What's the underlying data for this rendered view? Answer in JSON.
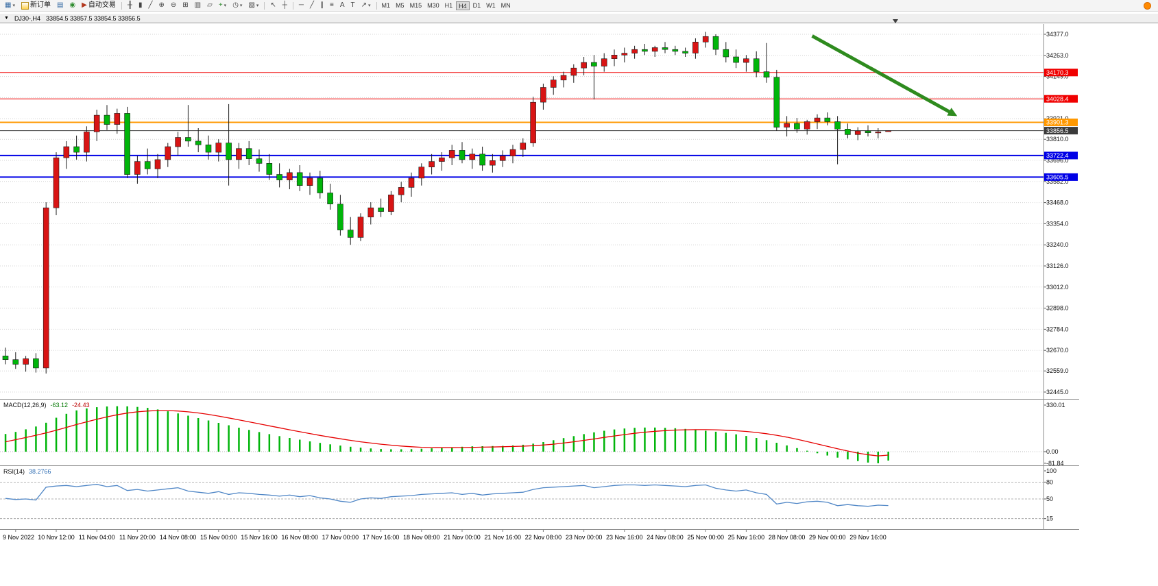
{
  "toolbar": {
    "new_order_label": "新订单",
    "autotrading_label": "自动交易",
    "timeframes": [
      "M1",
      "M5",
      "M15",
      "M30",
      "H1",
      "H4",
      "D1",
      "W1",
      "MN"
    ],
    "active_timeframe": "H4",
    "glyphs": {
      "dropdown": "▾",
      "charts": "▦",
      "market_watch": "▤",
      "navigator": "◉",
      "autotrading_play": "▶",
      "bar_chart": "╫",
      "candle_chart": "▮",
      "line_chart": "╱",
      "zoom_in": "⊕",
      "zoom_out": "⊖",
      "tile_windows": "⊞",
      "cascade": "▱",
      "arrange": "▥",
      "indicators": "+",
      "periods": "◷",
      "templates": "▧",
      "cursor": "↖",
      "crosshair": "┼",
      "horizontal_line": "─",
      "trendline": "╱",
      "channel": "∥",
      "fibonacci": "≡",
      "text": "A",
      "text_label": "T",
      "arrows": "↗"
    }
  },
  "chart_header": {
    "menu_glyph": "▼",
    "symbol_period": "DJ30-,H4",
    "ohlc": "33854.5 33857.5 33854.5 33856.5"
  },
  "chart_data": {
    "type": "candlestick",
    "symbol": "DJ30-",
    "timeframe": "H4",
    "candlestick": {
      "up_color": "#d81414",
      "down_color": "#00b50a",
      "y_axis_ticks": [
        "34377.0",
        "34263.0",
        "34149.0",
        "34035.0",
        "33921.0",
        "33810.0",
        "33696.0",
        "33582.0",
        "33468.0",
        "33354.0",
        "33240.0",
        "33126.0",
        "33012.0",
        "32898.0",
        "32784.0",
        "32670.0",
        "32559.0",
        "32445.0"
      ],
      "levels": [
        {
          "label": "34170.3",
          "price": 34170.3,
          "color": "#f00000",
          "width": 1
        },
        {
          "label": "34028.4",
          "price": 34028.4,
          "color": "#f00000",
          "width": 1
        },
        {
          "label": "33901.3",
          "price": 33901.3,
          "color": "#ff9800",
          "width": 2
        },
        {
          "label": "33856.5",
          "price": 33856.5,
          "color": "#3a3a3a",
          "width": 1
        },
        {
          "label": "33722.4",
          "price": 33722.4,
          "color": "#0000e6",
          "width": 2
        },
        {
          "label": "33605.5",
          "price": 33605.5,
          "color": "#0000e6",
          "width": 2
        }
      ],
      "candles": [
        [
          32640,
          32685,
          32595,
          32620
        ],
        [
          32620,
          32660,
          32570,
          32595
        ],
        [
          32595,
          32640,
          32555,
          32625
        ],
        [
          32625,
          32655,
          32550,
          32575
        ],
        [
          32575,
          33470,
          32545,
          33440
        ],
        [
          33440,
          33740,
          33400,
          33710
        ],
        [
          33710,
          33800,
          33650,
          33770
        ],
        [
          33770,
          33830,
          33700,
          33740
        ],
        [
          33740,
          33880,
          33690,
          33850
        ],
        [
          33850,
          33970,
          33800,
          33940
        ],
        [
          33940,
          33995,
          33860,
          33890
        ],
        [
          33890,
          33975,
          33840,
          33950
        ],
        [
          33950,
          33985,
          33600,
          33620
        ],
        [
          33620,
          33720,
          33570,
          33690
        ],
        [
          33690,
          33760,
          33620,
          33650
        ],
        [
          33650,
          33730,
          33600,
          33700
        ],
        [
          33700,
          33790,
          33660,
          33770
        ],
        [
          33770,
          33850,
          33720,
          33820
        ],
        [
          33820,
          33995,
          33770,
          33800
        ],
        [
          33800,
          33870,
          33740,
          33780
        ],
        [
          33780,
          33830,
          33700,
          33740
        ],
        [
          33740,
          33810,
          33690,
          33790
        ],
        [
          33790,
          34000,
          33560,
          33700
        ],
        [
          33700,
          33790,
          33650,
          33760
        ],
        [
          33760,
          33800,
          33670,
          33705
        ],
        [
          33705,
          33755,
          33635,
          33680
        ],
        [
          33680,
          33730,
          33590,
          33620
        ],
        [
          33620,
          33680,
          33550,
          33590
        ],
        [
          33590,
          33650,
          33540,
          33630
        ],
        [
          33630,
          33670,
          33530,
          33560
        ],
        [
          33560,
          33630,
          33510,
          33600
        ],
        [
          33600,
          33640,
          33490,
          33520
        ],
        [
          33520,
          33570,
          33430,
          33460
        ],
        [
          33460,
          33510,
          33290,
          33320
        ],
        [
          33320,
          33390,
          33240,
          33280
        ],
        [
          33280,
          33410,
          33260,
          33390
        ],
        [
          33390,
          33470,
          33350,
          33440
        ],
        [
          33440,
          33490,
          33390,
          33420
        ],
        [
          33420,
          33530,
          33400,
          33510
        ],
        [
          33510,
          33580,
          33470,
          33550
        ],
        [
          33550,
          33630,
          33500,
          33600
        ],
        [
          33600,
          33680,
          33560,
          33660
        ],
        [
          33660,
          33730,
          33620,
          33690
        ],
        [
          33690,
          33740,
          33640,
          33710
        ],
        [
          33710,
          33780,
          33670,
          33750
        ],
        [
          33750,
          33795,
          33680,
          33700
        ],
        [
          33700,
          33760,
          33650,
          33730
        ],
        [
          33730,
          33770,
          33640,
          33670
        ],
        [
          33670,
          33730,
          33630,
          33695
        ],
        [
          33695,
          33750,
          33660,
          33720
        ],
        [
          33720,
          33780,
          33680,
          33755
        ],
        [
          33755,
          33815,
          33715,
          33790
        ],
        [
          33790,
          34040,
          33770,
          34010
        ],
        [
          34010,
          34110,
          33970,
          34090
        ],
        [
          34090,
          34150,
          34050,
          34130
        ],
        [
          34130,
          34175,
          34090,
          34155
        ],
        [
          34155,
          34215,
          34115,
          34195
        ],
        [
          34195,
          34255,
          34155,
          34225
        ],
        [
          34225,
          34265,
          34025,
          34205
        ],
        [
          34205,
          34275,
          34175,
          34245
        ],
        [
          34245,
          34295,
          34205,
          34265
        ],
        [
          34265,
          34305,
          34225,
          34275
        ],
        [
          34275,
          34315,
          34245,
          34295
        ],
        [
          34295,
          34325,
          34265,
          34285
        ],
        [
          34285,
          34315,
          34255,
          34305
        ],
        [
          34305,
          34335,
          34275,
          34295
        ],
        [
          34295,
          34315,
          34265,
          34285
        ],
        [
          34285,
          34305,
          34255,
          34275
        ],
        [
          34275,
          34355,
          34245,
          34335
        ],
        [
          34335,
          34390,
          34305,
          34365
        ],
        [
          34365,
          34377,
          34265,
          34295
        ],
        [
          34295,
          34335,
          34225,
          34255
        ],
        [
          34255,
          34295,
          34195,
          34225
        ],
        [
          34225,
          34265,
          34175,
          34245
        ],
        [
          34245,
          34285,
          34145,
          34175
        ],
        [
          34175,
          34330,
          34115,
          34145
        ],
        [
          34145,
          34185,
          33855,
          33875
        ],
        [
          33875,
          33935,
          33825,
          33895
        ],
        [
          33895,
          33925,
          33845,
          33865
        ],
        [
          33865,
          33915,
          33835,
          33905
        ],
        [
          33905,
          33945,
          33865,
          33925
        ],
        [
          33925,
          33955,
          33885,
          33905
        ],
        [
          33905,
          33935,
          33675,
          33865
        ],
        [
          33865,
          33895,
          33815,
          33835
        ],
        [
          33835,
          33875,
          33805,
          33855
        ],
        [
          33855,
          33885,
          33825,
          33845
        ],
        [
          33845,
          33870,
          33815,
          33850
        ],
        [
          33854.5,
          33857.5,
          33854.5,
          33856.5
        ]
      ],
      "annotation_arrow": {
        "x1_candle": 79.5,
        "y1_price": 34368,
        "x2_candle": 93.8,
        "y2_price": 33935,
        "color": "#2e8b1e"
      }
    },
    "macd": {
      "label_name": "MACD(12,26,9)",
      "label_main": "-63.12",
      "label_signal": "-24.43",
      "histogram_color": "#00b50a",
      "signal_color": "#e60000",
      "y_axis_ticks": [
        "330.01",
        "0.00",
        "-81.84"
      ],
      "histogram": [
        125,
        140,
        158,
        178,
        205,
        240,
        268,
        292,
        306,
        315,
        320,
        322,
        321,
        317,
        310,
        299,
        286,
        271,
        255,
        238,
        221,
        204,
        187,
        170,
        154,
        139,
        124,
        110,
        97,
        85,
        73,
        62,
        52,
        43,
        35,
        28,
        23,
        19,
        17,
        17,
        18,
        21,
        24,
        28,
        32,
        35,
        38,
        39,
        40,
        41,
        44,
        49,
        57,
        68,
        81,
        96,
        110,
        124,
        137,
        148,
        157,
        164,
        169,
        171,
        171,
        169,
        166,
        161,
        155,
        148,
        141,
        133,
        123,
        111,
        97,
        81,
        63,
        44,
        25,
        7,
        -11,
        -27,
        -42,
        -55,
        -67,
        -77,
        -81.84,
        -63.12
      ],
      "signal": [
        70,
        85,
        100,
        116,
        133,
        152,
        172,
        192,
        211,
        229,
        246,
        261,
        273,
        282,
        288,
        291,
        291,
        288,
        282,
        274,
        264,
        252,
        239,
        225,
        211,
        197,
        183,
        169,
        155,
        141,
        128,
        115,
        103,
        91,
        80,
        70,
        61,
        53,
        46,
        40,
        35,
        31,
        29,
        28,
        28,
        29,
        30,
        32,
        33,
        35,
        37,
        39,
        42,
        47,
        53,
        61,
        70,
        80,
        90,
        101,
        111,
        121,
        130,
        138,
        144,
        149,
        153,
        155,
        156,
        156,
        155,
        152,
        148,
        143,
        136,
        127,
        116,
        103,
        88,
        72,
        55,
        38,
        21,
        5,
        -10,
        -22,
        -30,
        -24.43
      ]
    },
    "rsi": {
      "label_name": "RSI(14)",
      "label_value": "38.2766",
      "line_color": "#4f86c6",
      "levels": [
        80,
        50,
        15
      ],
      "y_axis_ticks": [
        "100",
        "80",
        "50",
        "15"
      ],
      "values": [
        51,
        49,
        50,
        48,
        71,
        73,
        74,
        72,
        74,
        76,
        72,
        74,
        65,
        67,
        64,
        66,
        68,
        70,
        64,
        62,
        60,
        63,
        58,
        61,
        60,
        58,
        57,
        55,
        57,
        54,
        56,
        52,
        50,
        46,
        44,
        50,
        52,
        51,
        54,
        55,
        56,
        58,
        59,
        60,
        61,
        58,
        60,
        57,
        59,
        60,
        61,
        62,
        67,
        70,
        71,
        72,
        73,
        74,
        70,
        72,
        74,
        75,
        75,
        74,
        75,
        74,
        73,
        72,
        74,
        75,
        69,
        66,
        64,
        66,
        61,
        58,
        41,
        44,
        42,
        45,
        46,
        44,
        38,
        40,
        38,
        37,
        39,
        38.28
      ]
    },
    "x_axis_labels": [
      {
        "text": "9 Nov 2022",
        "candle": 1
      },
      {
        "text": "10 Nov 12:00",
        "candle": 5
      },
      {
        "text": "11 Nov 04:00",
        "candle": 9
      },
      {
        "text": "11 Nov 20:00",
        "candle": 13
      },
      {
        "text": "14 Nov 08:00",
        "candle": 17
      },
      {
        "text": "15 Nov 00:00",
        "candle": 21
      },
      {
        "text": "15 Nov 16:00",
        "candle": 25
      },
      {
        "text": "16 Nov 08:00",
        "candle": 29
      },
      {
        "text": "17 Nov 00:00",
        "candle": 33
      },
      {
        "text": "17 Nov 16:00",
        "candle": 37
      },
      {
        "text": "18 Nov 08:00",
        "candle": 41
      },
      {
        "text": "21 Nov 00:00",
        "candle": 45
      },
      {
        "text": "21 Nov 16:00",
        "candle": 49
      },
      {
        "text": "22 Nov 08:00",
        "candle": 53
      },
      {
        "text": "23 Nov 00:00",
        "candle": 57
      },
      {
        "text": "23 Nov 16:00",
        "candle": 61
      },
      {
        "text": "24 Nov 08:00",
        "candle": 65
      },
      {
        "text": "25 Nov 00:00",
        "candle": 69
      },
      {
        "text": "25 Nov 16:00",
        "candle": 73
      },
      {
        "text": "28 Nov 08:00",
        "candle": 77
      },
      {
        "text": "29 Nov 00:00",
        "candle": 81
      },
      {
        "text": "29 Nov 16:00",
        "candle": 85
      }
    ]
  }
}
